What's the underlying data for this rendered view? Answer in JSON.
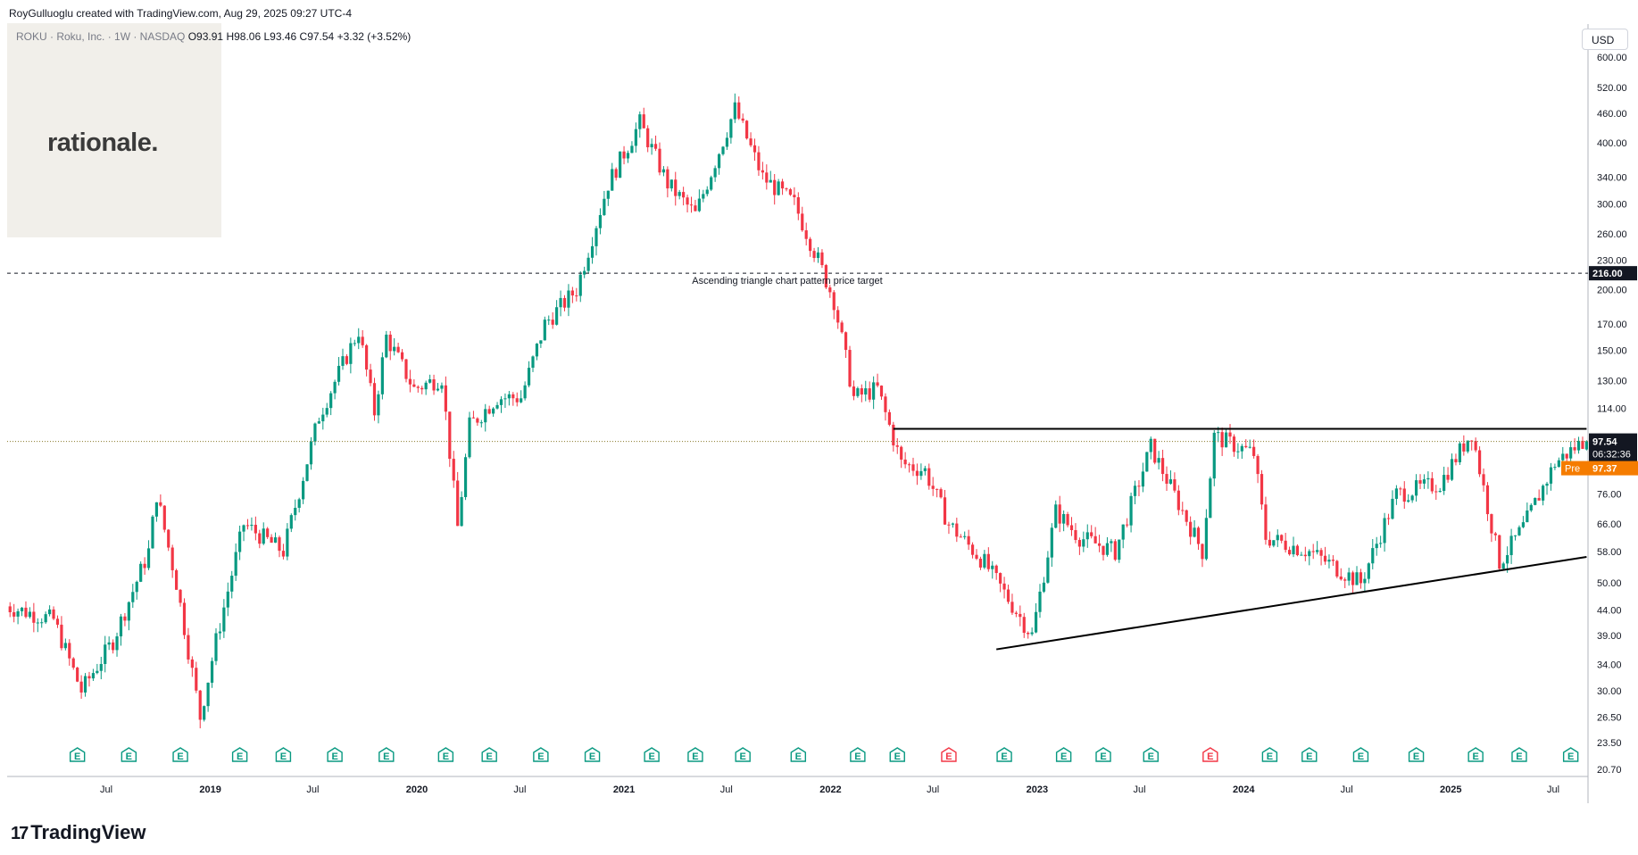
{
  "header": {
    "created_by": "RoyGulluoglu created with TradingView.com, Aug 29, 2025 09:27 UTC-4"
  },
  "symbol": {
    "name": "ROKU · Roku, Inc. · 1W · NASDAQ",
    "open": "O93.91",
    "high": "H98.06",
    "low": "L93.46",
    "close": "C97.54",
    "change": "+3.32 (+3.52%)"
  },
  "brand": {
    "logo_text": "rationale."
  },
  "currency": "USD",
  "footer": {
    "logo_text": "TradingView"
  },
  "colors": {
    "up": "#089981",
    "down": "#f23645",
    "last_price_bg": "#131722",
    "pre_market_bg": "#f57c00",
    "grid": "#e0e3eb",
    "earnings_icon": "#089981",
    "earnings_icon_negative": "#f23645"
  },
  "chart_data": {
    "type": "candlestick",
    "scale": "log",
    "y_ticks": [
      600,
      520,
      460,
      400,
      340,
      300,
      260,
      230,
      200,
      170,
      150,
      130,
      114,
      76,
      66,
      58,
      50,
      44,
      39,
      34,
      30,
      26.5,
      23.5,
      20.7
    ],
    "y_tick_labels": [
      "600.00",
      "520.00",
      "460.00",
      "400.00",
      "340.00",
      "300.00",
      "260.00",
      "230.00",
      "200.00",
      "170.00",
      "150.00",
      "130.00",
      "114.00",
      "76.00",
      "66.00",
      "58.00",
      "50.00",
      "44.00",
      "39.00",
      "34.00",
      "30.00",
      "26.50",
      "23.50",
      "20.70"
    ],
    "x_ticks": [
      {
        "date": "2018-07-01",
        "label": "Jul"
      },
      {
        "date": "2019-01-01",
        "label": "2019"
      },
      {
        "date": "2019-07-01",
        "label": "Jul"
      },
      {
        "date": "2020-01-01",
        "label": "2020"
      },
      {
        "date": "2020-07-01",
        "label": "Jul"
      },
      {
        "date": "2021-01-01",
        "label": "2021"
      },
      {
        "date": "2021-07-01",
        "label": "Jul"
      },
      {
        "date": "2022-01-01",
        "label": "2022"
      },
      {
        "date": "2022-07-01",
        "label": "Jul"
      },
      {
        "date": "2023-01-01",
        "label": "2023"
      },
      {
        "date": "2023-07-01",
        "label": "Jul"
      },
      {
        "date": "2024-01-01",
        "label": "2024"
      },
      {
        "date": "2024-07-01",
        "label": "Jul"
      },
      {
        "date": "2025-01-01",
        "label": "2025"
      },
      {
        "date": "2025-07-01",
        "label": "Jul"
      }
    ],
    "key_prices": [
      {
        "date": "2018-01-05",
        "price": 45
      },
      {
        "date": "2018-04-06",
        "price": 42
      },
      {
        "date": "2018-05-25",
        "price": 30
      },
      {
        "date": "2018-07-20",
        "price": 38
      },
      {
        "date": "2018-09-21",
        "price": 58
      },
      {
        "date": "2018-10-05",
        "price": 76
      },
      {
        "date": "2018-11-09",
        "price": 50
      },
      {
        "date": "2018-12-21",
        "price": 26.5
      },
      {
        "date": "2019-01-18",
        "price": 38
      },
      {
        "date": "2019-03-08",
        "price": 66
      },
      {
        "date": "2019-05-17",
        "price": 58
      },
      {
        "date": "2019-07-19",
        "price": 110
      },
      {
        "date": "2019-09-27",
        "price": 165
      },
      {
        "date": "2019-10-25",
        "price": 112
      },
      {
        "date": "2019-11-15",
        "price": 160
      },
      {
        "date": "2020-01-03",
        "price": 125
      },
      {
        "date": "2020-02-21",
        "price": 132
      },
      {
        "date": "2020-03-20",
        "price": 65
      },
      {
        "date": "2020-04-10",
        "price": 105
      },
      {
        "date": "2020-05-29",
        "price": 120
      },
      {
        "date": "2020-07-10",
        "price": 120
      },
      {
        "date": "2020-08-21",
        "price": 170
      },
      {
        "date": "2020-10-16",
        "price": 200
      },
      {
        "date": "2020-12-11",
        "price": 330
      },
      {
        "date": "2021-02-05",
        "price": 440
      },
      {
        "date": "2021-03-26",
        "price": 330
      },
      {
        "date": "2021-05-14",
        "price": 285
      },
      {
        "date": "2021-07-23",
        "price": 470
      },
      {
        "date": "2021-09-10",
        "price": 340
      },
      {
        "date": "2021-11-05",
        "price": 300
      },
      {
        "date": "2021-12-17",
        "price": 230
      },
      {
        "date": "2022-01-14",
        "price": 190
      },
      {
        "date": "2022-02-18",
        "price": 120
      },
      {
        "date": "2022-04-01",
        "price": 125
      },
      {
        "date": "2022-05-13",
        "price": 88
      },
      {
        "date": "2022-06-24",
        "price": 85
      },
      {
        "date": "2022-08-05",
        "price": 66
      },
      {
        "date": "2022-10-07",
        "price": 55
      },
      {
        "date": "2022-12-30",
        "price": 39
      },
      {
        "date": "2023-02-10",
        "price": 70
      },
      {
        "date": "2023-03-24",
        "price": 62
      },
      {
        "date": "2023-05-26",
        "price": 58
      },
      {
        "date": "2023-07-28",
        "price": 95
      },
      {
        "date": "2023-10-27",
        "price": 58
      },
      {
        "date": "2023-11-17",
        "price": 100
      },
      {
        "date": "2024-01-26",
        "price": 92
      },
      {
        "date": "2024-02-16",
        "price": 62
      },
      {
        "date": "2024-05-03",
        "price": 58
      },
      {
        "date": "2024-08-02",
        "price": 50
      },
      {
        "date": "2024-10-04",
        "price": 76
      },
      {
        "date": "2024-12-20",
        "price": 80
      },
      {
        "date": "2025-02-14",
        "price": 102
      },
      {
        "date": "2025-04-04",
        "price": 55
      },
      {
        "date": "2025-05-16",
        "price": 65
      },
      {
        "date": "2025-07-11",
        "price": 88
      },
      {
        "date": "2025-08-29",
        "price": 97.54
      }
    ],
    "resistance_line": {
      "price": 103.5,
      "from": "2022-04-22",
      "to": "2025-08-29"
    },
    "support_line": {
      "from": {
        "date": "2022-10-21",
        "price": 36.5
      },
      "to": {
        "date": "2025-08-29",
        "price": 56.5
      }
    },
    "target_line": {
      "price": 216.0,
      "label": "Ascending triangle chart pattern price target"
    },
    "last_price": {
      "value": "97.54",
      "countdown": "06:32:36"
    },
    "pre_market": {
      "label": "Pre",
      "value": "97.37"
    },
    "target_label": "216.00",
    "earnings_markers": [
      {
        "date": "2018-05-11",
        "negative": false
      },
      {
        "date": "2018-08-10",
        "negative": false
      },
      {
        "date": "2018-11-09",
        "negative": false
      },
      {
        "date": "2019-02-22",
        "negative": false
      },
      {
        "date": "2019-05-10",
        "negative": false
      },
      {
        "date": "2019-08-09",
        "negative": false
      },
      {
        "date": "2019-11-08",
        "negative": false
      },
      {
        "date": "2020-02-21",
        "negative": false
      },
      {
        "date": "2020-05-08",
        "negative": false
      },
      {
        "date": "2020-08-07",
        "negative": false
      },
      {
        "date": "2020-11-06",
        "negative": false
      },
      {
        "date": "2021-02-19",
        "negative": false
      },
      {
        "date": "2021-05-07",
        "negative": false
      },
      {
        "date": "2021-07-30",
        "negative": false
      },
      {
        "date": "2021-11-05",
        "negative": false
      },
      {
        "date": "2022-02-18",
        "negative": false
      },
      {
        "date": "2022-04-29",
        "negative": false
      },
      {
        "date": "2022-07-29",
        "negative": true
      },
      {
        "date": "2022-11-04",
        "negative": false
      },
      {
        "date": "2023-02-17",
        "negative": false
      },
      {
        "date": "2023-04-28",
        "negative": false
      },
      {
        "date": "2023-07-21",
        "negative": false
      },
      {
        "date": "2023-11-03",
        "negative": true
      },
      {
        "date": "2024-02-16",
        "negative": false
      },
      {
        "date": "2024-04-26",
        "negative": false
      },
      {
        "date": "2024-07-26",
        "negative": false
      },
      {
        "date": "2024-11-01",
        "negative": false
      },
      {
        "date": "2025-02-14",
        "negative": false
      },
      {
        "date": "2025-05-02",
        "negative": false
      },
      {
        "date": "2025-08-01",
        "negative": false
      }
    ]
  }
}
